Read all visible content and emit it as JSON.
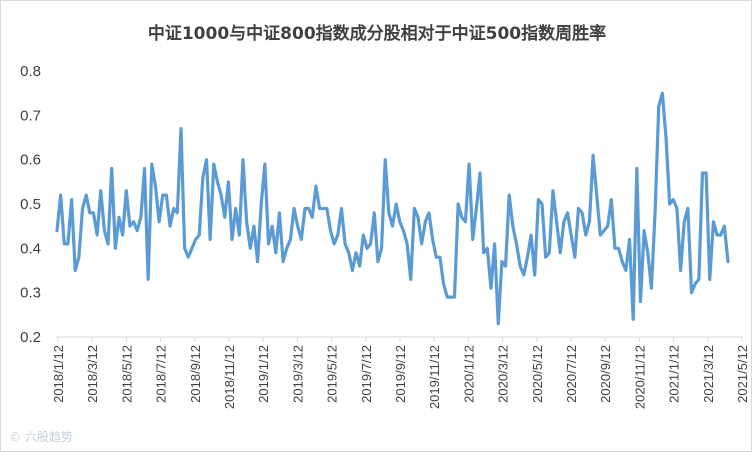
{
  "chart_data": {
    "type": "line",
    "title": "中证1000与中证800指数成分股相对于中证500指数周胜率",
    "xlabel": "",
    "ylabel": "",
    "ylim": [
      0.2,
      0.8
    ],
    "yticks": [
      "0.2",
      "0.3",
      "0.4",
      "0.5",
      "0.6",
      "0.7",
      "0.8"
    ],
    "xticks": [
      "2018/1/12",
      "2018/3/12",
      "2018/5/12",
      "2018/7/12",
      "2018/9/12",
      "2018/11/12",
      "2019/1/12",
      "2019/3/12",
      "2019/5/12",
      "2019/7/12",
      "2019/9/12",
      "2019/11/12",
      "2020/1/12",
      "2020/3/12",
      "2020/5/12",
      "2020/7/12",
      "2020/9/12",
      "2020/11/12",
      "2021/1/12",
      "2021/3/12",
      "2021/5/12"
    ],
    "grid": false,
    "legend": "none",
    "color": "#5b9bd5",
    "series": [
      {
        "values": [
          0.44,
          0.52,
          0.41,
          0.41,
          0.51,
          0.35,
          0.38,
          0.49,
          0.52,
          0.48,
          0.48,
          0.43,
          0.53,
          0.44,
          0.41,
          0.58,
          0.4,
          0.47,
          0.43,
          0.53,
          0.45,
          0.46,
          0.44,
          0.47,
          0.58,
          0.33,
          0.59,
          0.54,
          0.46,
          0.52,
          0.52,
          0.45,
          0.49,
          0.48,
          0.67,
          0.4,
          0.38,
          0.4,
          0.42,
          0.43,
          0.56,
          0.6,
          0.42,
          0.59,
          0.55,
          0.52,
          0.47,
          0.55,
          0.42,
          0.49,
          0.43,
          0.6,
          0.46,
          0.4,
          0.45,
          0.37,
          0.5,
          0.59,
          0.41,
          0.45,
          0.39,
          0.48,
          0.37,
          0.4,
          0.42,
          0.49,
          0.45,
          0.42,
          0.49,
          0.49,
          0.47,
          0.54,
          0.49,
          0.49,
          0.49,
          0.44,
          0.41,
          0.43,
          0.49,
          0.41,
          0.39,
          0.35,
          0.39,
          0.36,
          0.43,
          0.4,
          0.41,
          0.48,
          0.37,
          0.4,
          0.6,
          0.48,
          0.45,
          0.5,
          0.46,
          0.44,
          0.41,
          0.33,
          0.49,
          0.47,
          0.41,
          0.46,
          0.48,
          0.42,
          0.38,
          0.38,
          0.32,
          0.29,
          0.29,
          0.29,
          0.5,
          0.47,
          0.46,
          0.59,
          0.42,
          0.49,
          0.57,
          0.39,
          0.4,
          0.31,
          0.41,
          0.23,
          0.37,
          0.36,
          0.52,
          0.45,
          0.41,
          0.36,
          0.34,
          0.38,
          0.43,
          0.34,
          0.51,
          0.5,
          0.38,
          0.39,
          0.53,
          0.46,
          0.39,
          0.46,
          0.48,
          0.43,
          0.38,
          0.49,
          0.48,
          0.43,
          0.46,
          0.61,
          0.52,
          0.43,
          0.44,
          0.45,
          0.51,
          0.4,
          0.4,
          0.37,
          0.35,
          0.42,
          0.24,
          0.58,
          0.28,
          0.44,
          0.39,
          0.31,
          0.48,
          0.72,
          0.75,
          0.65,
          0.5,
          0.51,
          0.49,
          0.35,
          0.46,
          0.49,
          0.3,
          0.32,
          0.33,
          0.57,
          0.57,
          0.33,
          0.46,
          0.43,
          0.43,
          0.45,
          0.37
        ]
      }
    ]
  },
  "watermark": "©  六股趋势"
}
